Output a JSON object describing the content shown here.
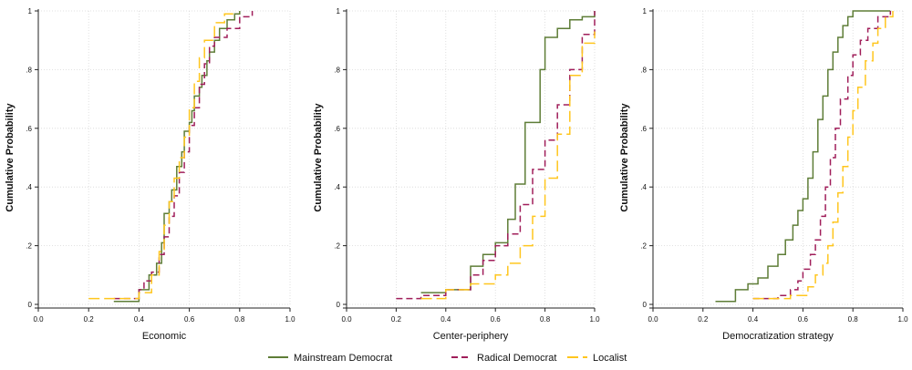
{
  "legend": {
    "position": "bottom",
    "items": [
      {
        "name": "Mainstream Democrat",
        "color": "#5e7d37",
        "dash": "solid"
      },
      {
        "name": "Radical Democrat",
        "color": "#a01e5a",
        "dash": "dashed"
      },
      {
        "name": "Localist",
        "color": "#ffc61e",
        "dash": "long-dash"
      }
    ]
  },
  "chart_data": [
    {
      "type": "line",
      "step": true,
      "xlabel": "Economic",
      "ylabel": "Cumulative Probability",
      "xlim": [
        0,
        1
      ],
      "ylim": [
        0,
        1
      ],
      "xticks": [
        "0.0",
        "0.2",
        "0.4",
        "0.6",
        "0.8",
        "1.0"
      ],
      "yticks": [
        "0",
        ".2",
        ".4",
        ".6",
        ".8",
        "1"
      ],
      "grid": true,
      "series": [
        {
          "name": "Mainstream Democrat",
          "x": [
            0.3,
            0.4,
            0.44,
            0.47,
            0.49,
            0.5,
            0.52,
            0.53,
            0.55,
            0.57,
            0.58,
            0.6,
            0.61,
            0.62,
            0.64,
            0.65,
            0.67,
            0.68,
            0.7,
            0.72,
            0.75,
            0.78,
            0.8
          ],
          "y": [
            0.01,
            0.05,
            0.1,
            0.14,
            0.21,
            0.31,
            0.35,
            0.39,
            0.47,
            0.52,
            0.59,
            0.62,
            0.66,
            0.71,
            0.74,
            0.78,
            0.83,
            0.86,
            0.9,
            0.94,
            0.97,
            0.99,
            1.0
          ]
        },
        {
          "name": "Radical Democrat",
          "x": [
            0.3,
            0.4,
            0.42,
            0.45,
            0.48,
            0.5,
            0.52,
            0.54,
            0.56,
            0.58,
            0.6,
            0.62,
            0.64,
            0.66,
            0.68,
            0.7,
            0.75,
            0.8,
            0.85
          ],
          "y": [
            0.02,
            0.05,
            0.08,
            0.11,
            0.17,
            0.23,
            0.3,
            0.37,
            0.45,
            0.52,
            0.61,
            0.67,
            0.75,
            0.82,
            0.88,
            0.91,
            0.94,
            0.98,
            1.0
          ]
        },
        {
          "name": "Localist",
          "x": [
            0.2,
            0.4,
            0.45,
            0.48,
            0.5,
            0.52,
            0.54,
            0.56,
            0.58,
            0.6,
            0.62,
            0.64,
            0.66,
            0.7,
            0.74,
            0.78
          ],
          "y": [
            0.02,
            0.04,
            0.1,
            0.18,
            0.27,
            0.35,
            0.43,
            0.5,
            0.57,
            0.67,
            0.76,
            0.84,
            0.9,
            0.96,
            0.99,
            1.0
          ]
        }
      ]
    },
    {
      "type": "line",
      "step": true,
      "xlabel": "Center-periphery",
      "ylabel": "Cumulative Probability",
      "xlim": [
        0,
        1
      ],
      "ylim": [
        0,
        1
      ],
      "xticks": [
        "0.0",
        "0.2",
        "0.4",
        "0.6",
        "0.8",
        "1.0"
      ],
      "yticks": [
        "0",
        ".2",
        ".4",
        ".6",
        ".8",
        "1"
      ],
      "grid": true,
      "series": [
        {
          "name": "Mainstream Democrat",
          "x": [
            0.3,
            0.4,
            0.5,
            0.55,
            0.6,
            0.65,
            0.68,
            0.72,
            0.78,
            0.8,
            0.85,
            0.9,
            0.95,
            1.0
          ],
          "y": [
            0.04,
            0.05,
            0.13,
            0.17,
            0.21,
            0.29,
            0.41,
            0.62,
            0.8,
            0.91,
            0.94,
            0.97,
            0.98,
            1.0
          ]
        },
        {
          "name": "Radical Democrat",
          "x": [
            0.2,
            0.3,
            0.4,
            0.5,
            0.55,
            0.6,
            0.65,
            0.7,
            0.75,
            0.8,
            0.85,
            0.9,
            0.95,
            1.0
          ],
          "y": [
            0.02,
            0.03,
            0.05,
            0.1,
            0.15,
            0.2,
            0.24,
            0.34,
            0.46,
            0.56,
            0.68,
            0.8,
            0.92,
            1.0
          ]
        },
        {
          "name": "Localist",
          "x": [
            0.3,
            0.4,
            0.5,
            0.6,
            0.65,
            0.7,
            0.75,
            0.8,
            0.85,
            0.9,
            0.95,
            1.0
          ],
          "y": [
            0.02,
            0.05,
            0.07,
            0.1,
            0.14,
            0.2,
            0.3,
            0.43,
            0.58,
            0.78,
            0.89,
            0.93
          ]
        }
      ]
    },
    {
      "type": "line",
      "step": true,
      "xlabel": "Democratization strategy",
      "ylabel": "Cumulative Probability",
      "xlim": [
        0,
        1
      ],
      "ylim": [
        0,
        1
      ],
      "xticks": [
        "0.0",
        "0.2",
        "0.4",
        "0.6",
        "0.8",
        "1.0"
      ],
      "yticks": [
        "0",
        ".2",
        ".4",
        ".6",
        ".8",
        "1"
      ],
      "grid": true,
      "series": [
        {
          "name": "Mainstream Democrat",
          "x": [
            0.25,
            0.33,
            0.38,
            0.42,
            0.46,
            0.5,
            0.53,
            0.56,
            0.58,
            0.6,
            0.62,
            0.64,
            0.66,
            0.68,
            0.7,
            0.72,
            0.74,
            0.76,
            0.78,
            0.8,
            0.85,
            0.9,
            0.95
          ],
          "y": [
            0.01,
            0.05,
            0.07,
            0.09,
            0.13,
            0.17,
            0.22,
            0.27,
            0.32,
            0.36,
            0.43,
            0.52,
            0.63,
            0.71,
            0.8,
            0.86,
            0.91,
            0.95,
            0.98,
            1.0,
            1.0,
            1.0,
            1.0
          ]
        },
        {
          "name": "Radical Democrat",
          "x": [
            0.4,
            0.5,
            0.55,
            0.58,
            0.6,
            0.63,
            0.65,
            0.67,
            0.69,
            0.71,
            0.73,
            0.75,
            0.78,
            0.8,
            0.83,
            0.86,
            0.9,
            0.95
          ],
          "y": [
            0.02,
            0.03,
            0.05,
            0.08,
            0.12,
            0.17,
            0.22,
            0.3,
            0.4,
            0.5,
            0.6,
            0.7,
            0.78,
            0.85,
            0.9,
            0.94,
            0.98,
            1.0
          ]
        },
        {
          "name": "Localist",
          "x": [
            0.4,
            0.55,
            0.62,
            0.65,
            0.68,
            0.7,
            0.72,
            0.74,
            0.76,
            0.78,
            0.8,
            0.82,
            0.85,
            0.88,
            0.9,
            0.93,
            0.96
          ],
          "y": [
            0.02,
            0.03,
            0.06,
            0.1,
            0.14,
            0.2,
            0.28,
            0.38,
            0.47,
            0.57,
            0.66,
            0.74,
            0.83,
            0.89,
            0.94,
            0.98,
            1.0
          ]
        }
      ]
    }
  ]
}
